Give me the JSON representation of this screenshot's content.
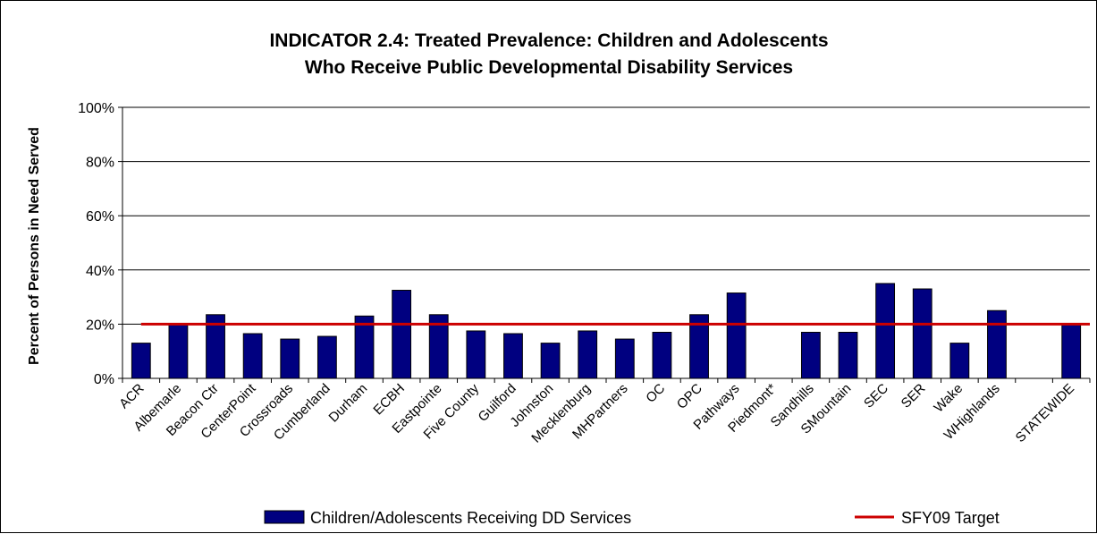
{
  "chart_data": {
    "type": "bar",
    "title": "INDICATOR 2.4: Treated Prevalence: Children and Adolescents",
    "subtitle": "Who Receive Public Developmental Disability Services",
    "xlabel": "",
    "ylabel": "Percent of Persons in Need Served",
    "ylim": [
      0,
      100
    ],
    "yticks": [
      "0%",
      "20%",
      "40%",
      "60%",
      "80%",
      "100%"
    ],
    "categories": [
      "ACR",
      "Albemarle",
      "Beacon Ctr",
      "CenterPoint",
      "Crossroads",
      "Cumberland",
      "Durham",
      "ECBH",
      "Eastpointe",
      "Five County",
      "Guilford",
      "Johnston",
      "Mecklenburg",
      "MHPartners",
      "OC",
      "OPC",
      "Pathways",
      "Piedmont*",
      "Sandhills",
      "SMountain",
      "SEC",
      "SER",
      "Wake",
      "WHighlands",
      "",
      "STATEWIDE"
    ],
    "series": [
      {
        "name": "Children/Adolescents Receiving DD Services",
        "color": "#000080",
        "values": [
          13,
          20,
          23.5,
          16.5,
          14.5,
          15.5,
          23,
          32.5,
          23.5,
          17.5,
          16.5,
          13,
          17.5,
          14.5,
          17,
          23.5,
          31.5,
          null,
          17,
          17,
          35,
          33,
          13,
          25,
          null,
          20
        ]
      }
    ],
    "target": {
      "name": "SFY09 Target",
      "value": 20,
      "color": "#cc0000"
    },
    "grid": true,
    "legend_position": "bottom"
  }
}
